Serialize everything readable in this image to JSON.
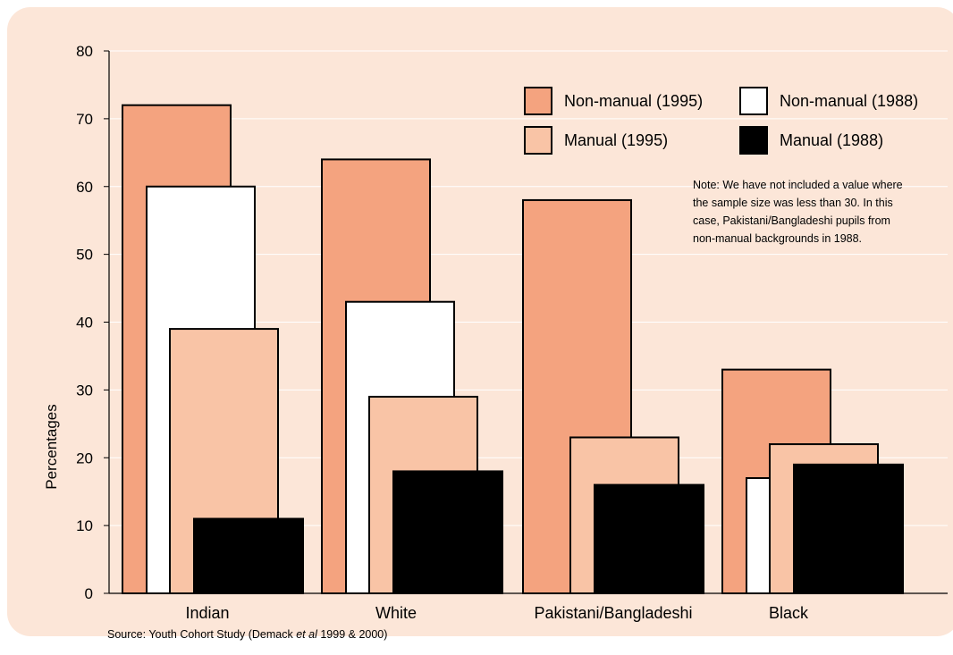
{
  "chart_data": {
    "type": "bar",
    "ylabel": "Percentages",
    "xlabel": "",
    "ylim": [
      0,
      80
    ],
    "yticks": [
      0,
      10,
      20,
      30,
      40,
      50,
      60,
      70,
      80
    ],
    "grid": true,
    "categories": [
      "Indian",
      "White",
      "Pakistani/Bangladeshi",
      "Black"
    ],
    "series": [
      {
        "name": "Non-manual (1995)",
        "color": "#f4a37f",
        "values": [
          72,
          64,
          58,
          33
        ]
      },
      {
        "name": "Non-manual (1988)",
        "color": "#ffffff",
        "values": [
          60,
          43,
          null,
          17
        ]
      },
      {
        "name": "Manual (1995)",
        "color": "#f9c4a6",
        "values": [
          39,
          29,
          23,
          22
        ]
      },
      {
        "name": "Manual (1988)",
        "color": "#000000",
        "values": [
          11,
          18,
          16,
          19
        ]
      }
    ],
    "legend_placement": "top-right",
    "note": [
      "Note: We have not included a value where",
      "the sample size was less than 30. In this",
      "case, Pakistani/Bangladeshi pupils from",
      "non-manual backgrounds in 1988."
    ],
    "source": {
      "prefix": "Source: Youth Cohort Study (Demack ",
      "italic": "et al",
      "suffix": " 1999 & 2000)"
    }
  },
  "colors": {
    "background": "#fce6d8",
    "gridline": "#ffffff",
    "axis": "#000000"
  }
}
